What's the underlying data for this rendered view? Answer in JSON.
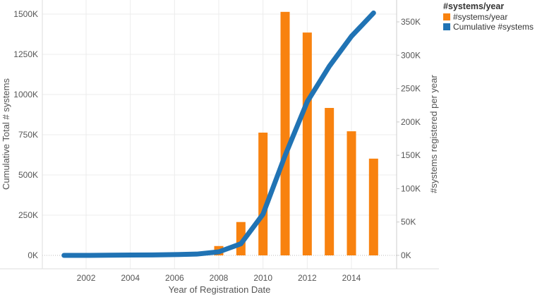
{
  "chart_data": {
    "type": "bar+line",
    "title": "",
    "xlabel": "Year of Registration Date",
    "ylabel_left": "Cumulative Total # systems",
    "ylabel_right": "#systems registered per year",
    "x_ticks": [
      "2002",
      "2004",
      "2006",
      "2008",
      "2010",
      "2012",
      "2014"
    ],
    "left_ticks": [
      "0K",
      "250K",
      "500K",
      "750K",
      "1000K",
      "1250K",
      "1500K"
    ],
    "right_ticks": [
      "0K",
      "50K",
      "100K",
      "150K",
      "200K",
      "250K",
      "300K",
      "350K"
    ],
    "left_ylim": [
      0,
      1500000
    ],
    "right_ylim": [
      0,
      350000
    ],
    "grid": true,
    "legend_position": "top-right",
    "legend_title": "#systems/year",
    "series": [
      {
        "name": "#systems/year",
        "type": "bar",
        "axis": "right",
        "color": "#F8820F",
        "x": [
          2008,
          2009,
          2010,
          2011,
          2012,
          2013,
          2014,
          2015
        ],
        "values": [
          14000,
          50000,
          184000,
          365000,
          334000,
          221000,
          186000,
          145000
        ]
      },
      {
        "name": "Cumulative #systems",
        "type": "line",
        "axis": "left",
        "color": "#2073B4",
        "x": [
          2001,
          2002,
          2003,
          2004,
          2005,
          2006,
          2007,
          2008,
          2009,
          2010,
          2011,
          2012,
          2013,
          2014,
          2015
        ],
        "values": [
          0,
          0,
          1000,
          2000,
          3000,
          5000,
          8000,
          22000,
          72000,
          256000,
          621000,
          955000,
          1176000,
          1362000,
          1507000
        ]
      }
    ]
  },
  "legend": {
    "title": "#systems/year",
    "items": [
      {
        "label": "#systems/year",
        "color": "#F8820F"
      },
      {
        "label": "Cumulative #systems",
        "color": "#2073B4"
      }
    ]
  }
}
